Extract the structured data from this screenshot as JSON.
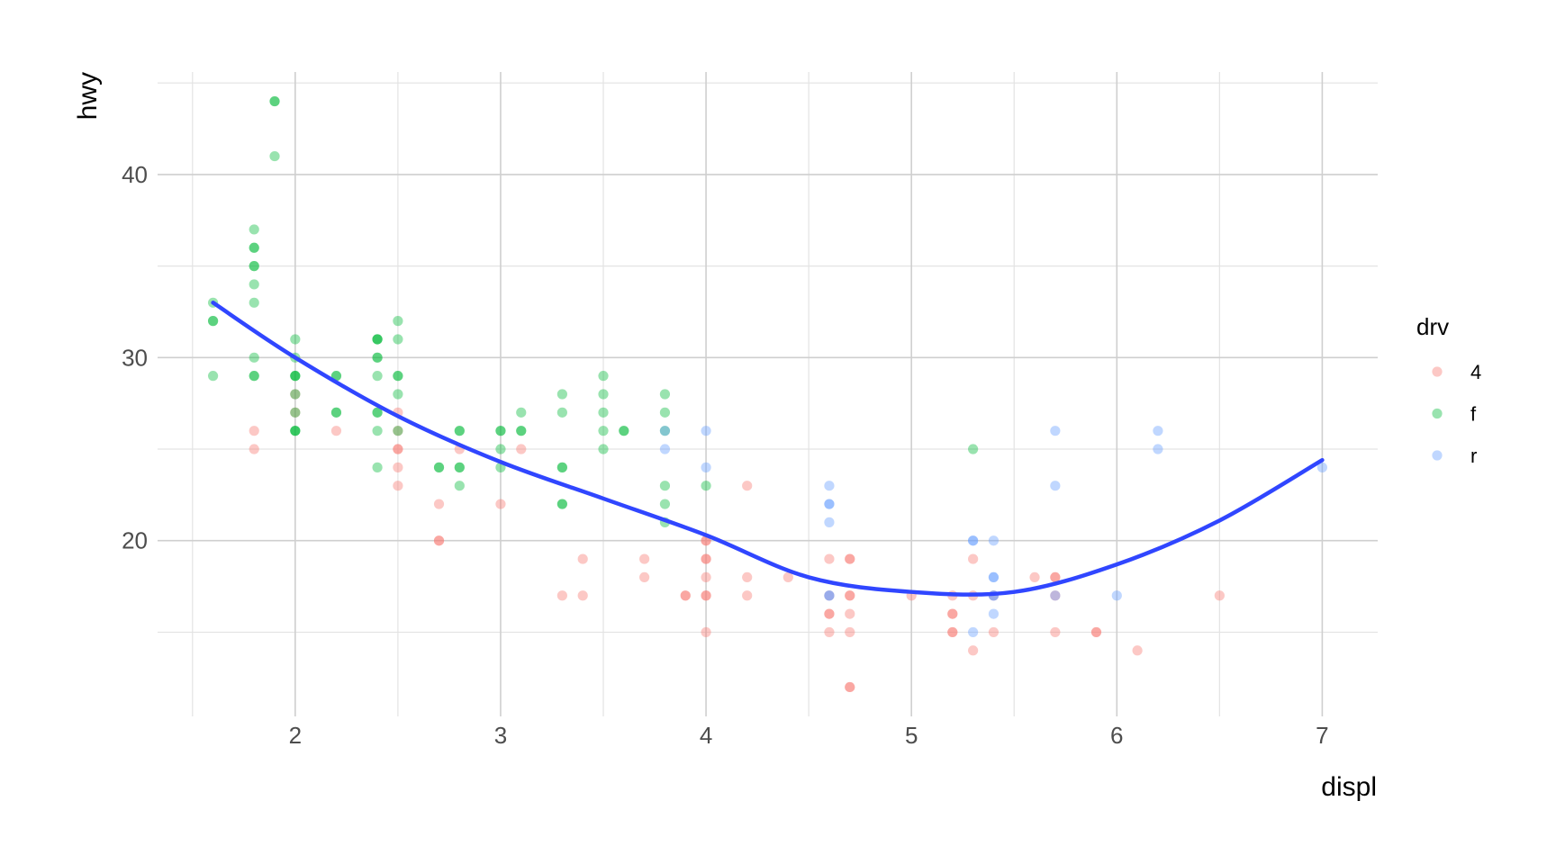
{
  "chart_data": {
    "type": "scatter",
    "title": "",
    "xlabel": "displ",
    "ylabel": "hwy",
    "xlim": [
      1.33,
      7.27
    ],
    "ylim": [
      10.4,
      45.6
    ],
    "x_ticks": [
      2,
      3,
      4,
      5,
      6,
      7
    ],
    "y_ticks": [
      20,
      30,
      40
    ],
    "grid": true,
    "point_opacity": 0.4,
    "legend": {
      "title": "drv",
      "placement": "right",
      "entries": [
        {
          "label": "4",
          "color": "#F8766D"
        },
        {
          "label": "f",
          "color": "#00BA38"
        },
        {
          "label": "r",
          "color": "#619CFF"
        }
      ]
    },
    "series": [
      {
        "name": "4",
        "color": "#F8766D",
        "points": [
          [
            1.8,
            26
          ],
          [
            1.8,
            25
          ],
          [
            2.0,
            28
          ],
          [
            2.0,
            27
          ],
          [
            2.2,
            26
          ],
          [
            2.5,
            27
          ],
          [
            2.5,
            26
          ],
          [
            2.5,
            25
          ],
          [
            2.5,
            25
          ],
          [
            2.5,
            24
          ],
          [
            2.5,
            23
          ],
          [
            2.7,
            22
          ],
          [
            2.7,
            20
          ],
          [
            2.7,
            20
          ],
          [
            2.8,
            25
          ],
          [
            3.0,
            22
          ],
          [
            3.1,
            25
          ],
          [
            3.3,
            17
          ],
          [
            3.4,
            19
          ],
          [
            3.4,
            17
          ],
          [
            3.7,
            19
          ],
          [
            3.7,
            18
          ],
          [
            3.9,
            17
          ],
          [
            3.9,
            17
          ],
          [
            4.0,
            20
          ],
          [
            4.0,
            20
          ],
          [
            4.0,
            19
          ],
          [
            4.0,
            19
          ],
          [
            4.0,
            18
          ],
          [
            4.0,
            17
          ],
          [
            4.0,
            17
          ],
          [
            4.0,
            15
          ],
          [
            4.2,
            23
          ],
          [
            4.2,
            18
          ],
          [
            4.2,
            17
          ],
          [
            4.4,
            18
          ],
          [
            4.6,
            19
          ],
          [
            4.6,
            17
          ],
          [
            4.6,
            16
          ],
          [
            4.6,
            16
          ],
          [
            4.6,
            15
          ],
          [
            4.7,
            19
          ],
          [
            4.7,
            19
          ],
          [
            4.7,
            17
          ],
          [
            4.7,
            17
          ],
          [
            4.7,
            16
          ],
          [
            4.7,
            15
          ],
          [
            4.7,
            12
          ],
          [
            4.7,
            12
          ],
          [
            5.0,
            17
          ],
          [
            5.2,
            17
          ],
          [
            5.2,
            16
          ],
          [
            5.2,
            16
          ],
          [
            5.2,
            15
          ],
          [
            5.2,
            15
          ],
          [
            5.3,
            19
          ],
          [
            5.3,
            17
          ],
          [
            5.3,
            14
          ],
          [
            5.4,
            17
          ],
          [
            5.4,
            15
          ],
          [
            5.6,
            18
          ],
          [
            5.7,
            18
          ],
          [
            5.7,
            18
          ],
          [
            5.7,
            17
          ],
          [
            5.7,
            15
          ],
          [
            5.9,
            15
          ],
          [
            5.9,
            15
          ],
          [
            6.1,
            14
          ],
          [
            6.5,
            17
          ]
        ]
      },
      {
        "name": "f",
        "color": "#00BA38",
        "points": [
          [
            1.6,
            33
          ],
          [
            1.6,
            32
          ],
          [
            1.6,
            32
          ],
          [
            1.6,
            29
          ],
          [
            1.8,
            37
          ],
          [
            1.8,
            36
          ],
          [
            1.8,
            36
          ],
          [
            1.8,
            35
          ],
          [
            1.8,
            35
          ],
          [
            1.8,
            34
          ],
          [
            1.8,
            33
          ],
          [
            1.8,
            30
          ],
          [
            1.8,
            29
          ],
          [
            1.8,
            29
          ],
          [
            1.9,
            44
          ],
          [
            1.9,
            44
          ],
          [
            1.9,
            41
          ],
          [
            2.0,
            31
          ],
          [
            2.0,
            30
          ],
          [
            2.0,
            29
          ],
          [
            2.0,
            29
          ],
          [
            2.0,
            29
          ],
          [
            2.0,
            28
          ],
          [
            2.0,
            27
          ],
          [
            2.0,
            26
          ],
          [
            2.0,
            26
          ],
          [
            2.0,
            26
          ],
          [
            2.2,
            29
          ],
          [
            2.2,
            29
          ],
          [
            2.2,
            27
          ],
          [
            2.2,
            27
          ],
          [
            2.4,
            31
          ],
          [
            2.4,
            31
          ],
          [
            2.4,
            31
          ],
          [
            2.4,
            30
          ],
          [
            2.4,
            30
          ],
          [
            2.4,
            29
          ],
          [
            2.4,
            27
          ],
          [
            2.4,
            27
          ],
          [
            2.4,
            26
          ],
          [
            2.4,
            24
          ],
          [
            2.5,
            32
          ],
          [
            2.5,
            31
          ],
          [
            2.5,
            29
          ],
          [
            2.5,
            29
          ],
          [
            2.5,
            28
          ],
          [
            2.5,
            26
          ],
          [
            2.7,
            24
          ],
          [
            2.7,
            24
          ],
          [
            2.8,
            26
          ],
          [
            2.8,
            26
          ],
          [
            2.8,
            24
          ],
          [
            2.8,
            24
          ],
          [
            2.8,
            23
          ],
          [
            3.0,
            26
          ],
          [
            3.0,
            26
          ],
          [
            3.0,
            25
          ],
          [
            3.0,
            24
          ],
          [
            3.1,
            27
          ],
          [
            3.1,
            26
          ],
          [
            3.1,
            26
          ],
          [
            3.3,
            28
          ],
          [
            3.3,
            27
          ],
          [
            3.3,
            24
          ],
          [
            3.3,
            24
          ],
          [
            3.3,
            22
          ],
          [
            3.3,
            22
          ],
          [
            3.5,
            29
          ],
          [
            3.5,
            28
          ],
          [
            3.5,
            27
          ],
          [
            3.5,
            26
          ],
          [
            3.5,
            25
          ],
          [
            3.6,
            26
          ],
          [
            3.6,
            26
          ],
          [
            3.8,
            28
          ],
          [
            3.8,
            27
          ],
          [
            3.8,
            26
          ],
          [
            3.8,
            23
          ],
          [
            3.8,
            22
          ],
          [
            3.8,
            21
          ],
          [
            4.0,
            23
          ],
          [
            5.3,
            25
          ]
        ]
      },
      {
        "name": "r",
        "color": "#619CFF",
        "points": [
          [
            3.8,
            26
          ],
          [
            3.8,
            25
          ],
          [
            4.0,
            26
          ],
          [
            4.0,
            24
          ],
          [
            4.6,
            23
          ],
          [
            4.6,
            22
          ],
          [
            4.6,
            22
          ],
          [
            4.6,
            21
          ],
          [
            4.6,
            17
          ],
          [
            4.6,
            17
          ],
          [
            5.3,
            20
          ],
          [
            5.3,
            20
          ],
          [
            5.3,
            15
          ],
          [
            5.4,
            20
          ],
          [
            5.4,
            18
          ],
          [
            5.4,
            18
          ],
          [
            5.4,
            17
          ],
          [
            5.4,
            17
          ],
          [
            5.4,
            16
          ],
          [
            5.7,
            26
          ],
          [
            5.7,
            23
          ],
          [
            5.7,
            17
          ],
          [
            6.0,
            17
          ],
          [
            6.2,
            26
          ],
          [
            6.2,
            25
          ],
          [
            7.0,
            24
          ]
        ]
      }
    ],
    "smooth": {
      "color": "#3046FF",
      "points": [
        [
          1.6,
          33.0
        ],
        [
          2.0,
          30.0
        ],
        [
          2.5,
          26.8
        ],
        [
          3.0,
          24.3
        ],
        [
          3.5,
          22.3
        ],
        [
          4.0,
          20.3
        ],
        [
          4.5,
          18.0
        ],
        [
          5.0,
          17.2
        ],
        [
          5.5,
          17.2
        ],
        [
          6.0,
          18.7
        ],
        [
          6.5,
          21.1
        ],
        [
          7.0,
          24.4
        ]
      ]
    }
  }
}
